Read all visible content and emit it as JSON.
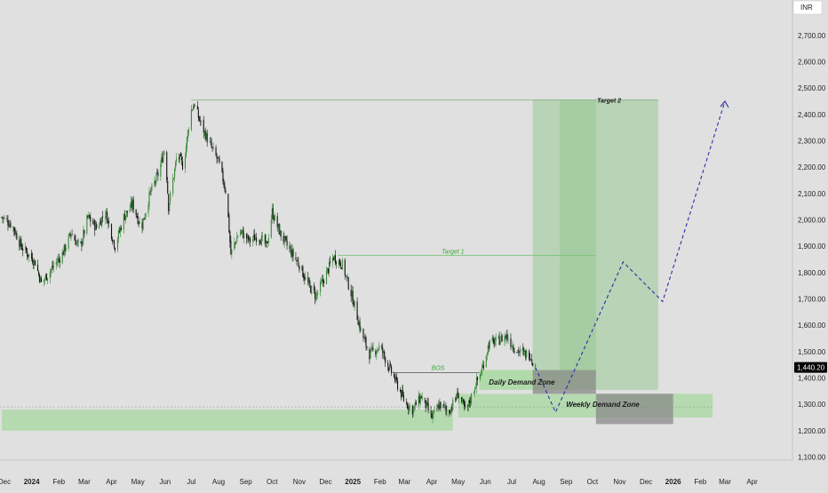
{
  "currency_label": "INR",
  "colors": {
    "background": "#e0e0e0",
    "candle_up": "#3a8a3a",
    "candle_down": "#111111",
    "zone_fill": "#a8d8a0",
    "target_fill": "#9cc99a",
    "dark_box": "#8a8a8a",
    "projection": "#2e2ea8",
    "price_tag_bg": "#000000"
  },
  "chart_data": {
    "type": "candlestick",
    "title": "",
    "xlabel": "",
    "ylabel": "",
    "ylim": [
      1000,
      2800
    ],
    "y_ticks": [
      "1,100.00",
      "1,200.00",
      "1,300.00",
      "1,400.00",
      "1,500.00",
      "1,600.00",
      "1,700.00",
      "1,800.00",
      "1,900.00",
      "2,000.00",
      "2,100.00",
      "2,200.00",
      "2,300.00",
      "2,400.00",
      "2,500.00",
      "2,600.00",
      "2,700.00"
    ],
    "x_ticks": [
      {
        "label": "Dec",
        "date": "2023-12-01",
        "bold": false
      },
      {
        "label": "2024",
        "date": "2024-01-01",
        "bold": true
      },
      {
        "label": "Feb",
        "date": "2024-02-01",
        "bold": false
      },
      {
        "label": "Mar",
        "date": "2024-03-01",
        "bold": false
      },
      {
        "label": "Apr",
        "date": "2024-04-01",
        "bold": false
      },
      {
        "label": "May",
        "date": "2024-05-01",
        "bold": false
      },
      {
        "label": "Jun",
        "date": "2024-06-01",
        "bold": false
      },
      {
        "label": "Jul",
        "date": "2024-07-01",
        "bold": false
      },
      {
        "label": "Aug",
        "date": "2024-08-01",
        "bold": false
      },
      {
        "label": "Sep",
        "date": "2024-09-01",
        "bold": false
      },
      {
        "label": "Oct",
        "date": "2024-10-01",
        "bold": false
      },
      {
        "label": "Nov",
        "date": "2024-11-01",
        "bold": false
      },
      {
        "label": "Dec",
        "date": "2024-12-01",
        "bold": false
      },
      {
        "label": "2025",
        "date": "2025-01-01",
        "bold": true
      },
      {
        "label": "Feb",
        "date": "2025-02-01",
        "bold": false
      },
      {
        "label": "Mar",
        "date": "2025-03-01",
        "bold": false
      },
      {
        "label": "Apr",
        "date": "2025-04-01",
        "bold": false
      },
      {
        "label": "May",
        "date": "2025-05-01",
        "bold": false
      },
      {
        "label": "Jun",
        "date": "2025-06-01",
        "bold": false
      },
      {
        "label": "Jul",
        "date": "2025-07-01",
        "bold": false
      },
      {
        "label": "Aug",
        "date": "2025-08-01",
        "bold": false
      },
      {
        "label": "Sep",
        "date": "2025-09-01",
        "bold": false
      },
      {
        "label": "Oct",
        "date": "2025-10-01",
        "bold": false
      },
      {
        "label": "Nov",
        "date": "2025-11-01",
        "bold": false
      },
      {
        "label": "Dec",
        "date": "2025-12-01",
        "bold": false
      },
      {
        "label": "2026",
        "date": "2026-01-01",
        "bold": true
      },
      {
        "label": "Feb",
        "date": "2026-02-01",
        "bold": false
      },
      {
        "label": "Mar",
        "date": "2026-03-01",
        "bold": false
      },
      {
        "label": "Apr",
        "date": "2026-04-01",
        "bold": false
      }
    ],
    "price_path": [
      [
        "2023-11-28",
        2010
      ],
      [
        "2023-12-10",
        1980
      ],
      [
        "2023-12-20",
        1900
      ],
      [
        "2024-01-05",
        1840
      ],
      [
        "2024-01-12",
        1760
      ],
      [
        "2024-01-25",
        1820
      ],
      [
        "2024-02-05",
        1870
      ],
      [
        "2024-02-15",
        1950
      ],
      [
        "2024-02-25",
        1890
      ],
      [
        "2024-03-05",
        2010
      ],
      [
        "2024-03-15",
        1970
      ],
      [
        "2024-03-25",
        2030
      ],
      [
        "2024-04-05",
        1900
      ],
      [
        "2024-04-15",
        2010
      ],
      [
        "2024-04-25",
        2060
      ],
      [
        "2024-05-05",
        1970
      ],
      [
        "2024-05-15",
        2100
      ],
      [
        "2024-05-25",
        2180
      ],
      [
        "2024-06-01",
        2280
      ],
      [
        "2024-06-05",
        2050
      ],
      [
        "2024-06-15",
        2250
      ],
      [
        "2024-06-22",
        2200
      ],
      [
        "2024-06-30",
        2410
      ],
      [
        "2024-07-04",
        2440
      ],
      [
        "2024-07-10",
        2380
      ],
      [
        "2024-07-20",
        2300
      ],
      [
        "2024-08-01",
        2220
      ],
      [
        "2024-08-10",
        2100
      ],
      [
        "2024-08-15",
        1870
      ],
      [
        "2024-08-25",
        1960
      ],
      [
        "2024-09-05",
        1920
      ],
      [
        "2024-09-15",
        1940
      ],
      [
        "2024-09-25",
        1900
      ],
      [
        "2024-10-01",
        2030
      ],
      [
        "2024-10-10",
        1950
      ],
      [
        "2024-10-20",
        1890
      ],
      [
        "2024-11-01",
        1830
      ],
      [
        "2024-11-10",
        1760
      ],
      [
        "2024-11-20",
        1710
      ],
      [
        "2024-12-01",
        1790
      ],
      [
        "2024-12-10",
        1860
      ],
      [
        "2024-12-20",
        1830
      ],
      [
        "2025-01-01",
        1700
      ],
      [
        "2025-01-10",
        1580
      ],
      [
        "2025-01-20",
        1490
      ],
      [
        "2025-02-01",
        1520
      ],
      [
        "2025-02-10",
        1450
      ],
      [
        "2025-02-20",
        1380
      ],
      [
        "2025-03-01",
        1310
      ],
      [
        "2025-03-10",
        1280
      ],
      [
        "2025-03-20",
        1330
      ],
      [
        "2025-04-01",
        1250
      ],
      [
        "2025-04-10",
        1300
      ],
      [
        "2025-04-20",
        1270
      ],
      [
        "2025-05-01",
        1340
      ],
      [
        "2025-05-10",
        1270
      ],
      [
        "2025-05-20",
        1370
      ],
      [
        "2025-05-27",
        1420
      ],
      [
        "2025-06-05",
        1530
      ],
      [
        "2025-06-15",
        1540
      ],
      [
        "2025-06-25",
        1560
      ],
      [
        "2025-07-05",
        1510
      ],
      [
        "2025-07-15",
        1490
      ],
      [
        "2025-07-22",
        1490
      ],
      [
        "2025-07-28",
        1440
      ]
    ],
    "last_price": "1,440.20",
    "annotations": {
      "bos": {
        "label": "BOS",
        "price": 1420,
        "from": "2025-02-15",
        "to": "2025-05-25"
      },
      "target1": {
        "label": "Target 1",
        "price": 1865,
        "from": "2024-12-15",
        "to": "2025-10-05"
      },
      "target2": {
        "label": "Target 2",
        "price": 2455,
        "from": "2024-07-01",
        "to": "2025-12-15"
      },
      "daily_demand_zone": {
        "label": "Daily Demand Zone",
        "price_top": 1430,
        "price_bottom": 1355,
        "from": "2025-05-25",
        "to": "2025-10-05"
      },
      "weekly_demand_zone": {
        "label": "Weekly Demand Zone",
        "price_top": 1340,
        "price_bottom": 1250,
        "from": "2025-05-01",
        "to": "2026-02-15"
      },
      "lower_zone": {
        "price_top": 1280,
        "price_bottom": 1200,
        "from": "2023-11-28",
        "to": "2025-04-25"
      },
      "target_box_outer": {
        "price_top": 2455,
        "price_bottom": 1355,
        "from": "2025-07-25",
        "to": "2025-12-15"
      },
      "target_box_inner": {
        "price_top": 2455,
        "price_bottom": 1430,
        "from": "2025-08-25",
        "to": "2025-10-05"
      },
      "projection_path": [
        [
          "2025-07-28",
          1440
        ],
        [
          "2025-08-20",
          1270
        ],
        [
          "2025-11-05",
          1840
        ],
        [
          "2025-12-20",
          1690
        ],
        [
          "2026-03-01",
          2450
        ]
      ]
    }
  }
}
